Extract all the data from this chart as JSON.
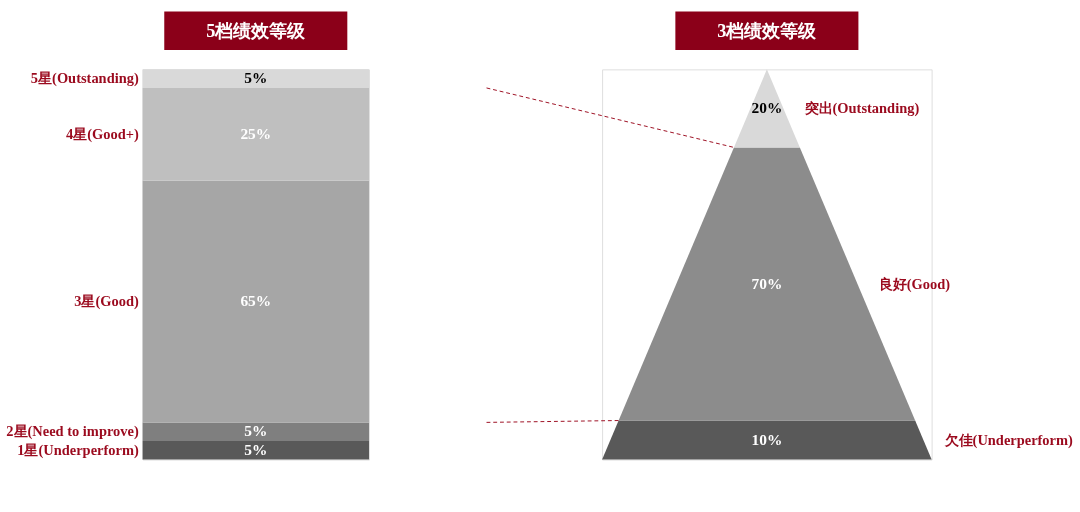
{
  "chart_data": [
    {
      "type": "bar",
      "stacked": true,
      "title": "5档绩效等级",
      "categories": [
        null
      ],
      "series": [
        {
          "name": "1星(Underperform)",
          "color": "#595959",
          "values": [
            5
          ],
          "value_labels": [
            "5%"
          ]
        },
        {
          "name": "2星(Need to improve)",
          "color": "#7f7f7f",
          "values": [
            5
          ],
          "value_labels": [
            "5%"
          ]
        },
        {
          "name": "3星(Good)",
          "color": "#a6a6a6",
          "values": [
            65
          ],
          "value_labels": [
            "65%"
          ]
        },
        {
          "name": "4星(Good+)",
          "color": "#bfbfbf",
          "values": [
            25
          ],
          "value_labels": [
            "25%"
          ]
        },
        {
          "name": "5星(Outstanding)",
          "color": "#d9d9d9",
          "values": [
            5
          ],
          "value_labels": [
            "5%"
          ]
        }
      ]
    },
    {
      "type": "other",
      "title": "3档绩效等级",
      "categories": [
        "突出(Outstanding)",
        "良好(Good)",
        "欠佳(Underperform)"
      ],
      "values": [
        20,
        70,
        10
      ],
      "value_labels": [
        "20%",
        "70%",
        "10%"
      ],
      "colors": [
        "#d9d9d9",
        "#8c8c8c",
        "#595959"
      ]
    }
  ]
}
